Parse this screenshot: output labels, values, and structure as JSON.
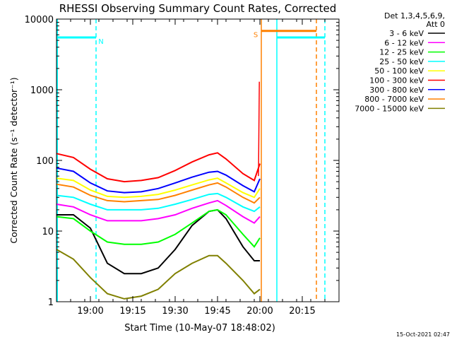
{
  "chart_data": {
    "type": "line",
    "title": "RHESSI Observing Summary Count Rates, Corrected",
    "xlabel": "Start Time (10-May-07 18:48:02)",
    "ylabel": "Corrected Count Rate (s⁻¹ detector⁻¹)",
    "yscale": "log",
    "ylim": [
      1,
      10000
    ],
    "xlim_minutes": [
      0,
      100
    ],
    "x_ticks": [
      {
        "label": "19:00",
        "minute": 12
      },
      {
        "label": "19:15",
        "minute": 27
      },
      {
        "label": "19:30",
        "minute": 42
      },
      {
        "label": "19:45",
        "minute": 57
      },
      {
        "label": "20:00",
        "minute": 72
      },
      {
        "label": "20:15",
        "minute": 87
      }
    ],
    "y_ticks": [
      "1",
      "10",
      "100",
      "1000",
      "10000"
    ],
    "legend_header": [
      "Det 1,3,4,5,6,9,",
      "Att 0"
    ],
    "legend_placement": "right",
    "timestamp": "15-Oct-2021 02:47",
    "series": [
      {
        "name": "3 - 6 keV",
        "color": "#000000",
        "x": [
          0,
          6,
          12,
          18,
          24,
          30,
          36,
          42,
          48,
          54,
          57,
          60,
          66,
          70,
          72
        ],
        "y": [
          17,
          17,
          11,
          3.5,
          2.5,
          2.5,
          3,
          5.5,
          12,
          19,
          20,
          15,
          6,
          3.8,
          3.8
        ]
      },
      {
        "name": "6 - 12 keV",
        "color": "#ff00ff",
        "x": [
          0,
          6,
          12,
          18,
          24,
          30,
          36,
          42,
          48,
          54,
          57,
          60,
          66,
          70,
          72
        ],
        "y": [
          24,
          22,
          17,
          14,
          14,
          14,
          15,
          17,
          21,
          25,
          27,
          23,
          16,
          13,
          16
        ]
      },
      {
        "name": "12 - 25 keV",
        "color": "#00ff00",
        "x": [
          0,
          6,
          12,
          18,
          24,
          30,
          36,
          42,
          48,
          54,
          57,
          60,
          66,
          70,
          72
        ],
        "y": [
          16,
          15,
          10,
          7,
          6.5,
          6.5,
          7,
          9,
          13,
          19,
          20,
          17,
          9,
          6,
          8
        ]
      },
      {
        "name": "25 - 50 keV",
        "color": "#00ffff",
        "x": [
          0,
          6,
          12,
          18,
          24,
          30,
          36,
          42,
          48,
          54,
          57,
          60,
          66,
          70,
          72
        ],
        "y": [
          32,
          30,
          24,
          20,
          20,
          20,
          21,
          24,
          28,
          33,
          34,
          30,
          22,
          19,
          22
        ]
      },
      {
        "name": "50 - 100 keV",
        "color": "#ffff00",
        "x": [
          0,
          6,
          12,
          18,
          24,
          30,
          36,
          42,
          48,
          54,
          57,
          60,
          66,
          70,
          72
        ],
        "y": [
          56,
          52,
          38,
          31,
          30,
          31,
          33,
          38,
          45,
          53,
          56,
          48,
          35,
          30,
          40
        ]
      },
      {
        "name": "100 - 300 keV",
        "color": "#ff0000",
        "x": [
          0,
          6,
          12,
          18,
          24,
          30,
          36,
          42,
          48,
          54,
          57,
          60,
          66,
          70,
          72
        ],
        "y": [
          125,
          110,
          75,
          55,
          50,
          52,
          57,
          72,
          95,
          120,
          128,
          105,
          65,
          52,
          90
        ]
      },
      {
        "name": "300 - 800 keV",
        "color": "#0000ff",
        "x": [
          0,
          6,
          12,
          18,
          24,
          30,
          36,
          42,
          48,
          54,
          57,
          60,
          66,
          70,
          72
        ],
        "y": [
          78,
          70,
          48,
          37,
          35,
          36,
          40,
          48,
          58,
          68,
          70,
          62,
          44,
          36,
          55
        ]
      },
      {
        "name": "800 - 7000 keV",
        "color": "#ff8000",
        "x": [
          0,
          6,
          12,
          18,
          24,
          30,
          36,
          42,
          48,
          54,
          57,
          60,
          66,
          70,
          72
        ],
        "y": [
          46,
          42,
          32,
          27,
          26,
          27,
          28,
          32,
          38,
          45,
          48,
          42,
          30,
          25,
          30
        ]
      },
      {
        "name": "7000 - 15000 keV",
        "color": "#808000",
        "x": [
          0,
          6,
          12,
          18,
          24,
          30,
          36,
          42,
          48,
          54,
          57,
          60,
          66,
          70,
          72
        ],
        "y": [
          5.5,
          4,
          2.2,
          1.3,
          1.1,
          1.2,
          1.5,
          2.5,
          3.5,
          4.5,
          4.5,
          3.5,
          2,
          1.3,
          1.5
        ]
      }
    ],
    "annotations": [
      {
        "label": "N",
        "color": "#00ffff",
        "x_start": 0,
        "x_end": 14,
        "y": 5500
      },
      {
        "label": "S",
        "color": "#ff8000",
        "x_start": 72.5,
        "x_end": 92,
        "y": 6800
      },
      {
        "label": "",
        "color": "#00ffff",
        "x_start": 78,
        "x_end": 95,
        "y": 5500
      }
    ],
    "vertical_lines": [
      {
        "x": 14,
        "color": "#00ffff",
        "style": "dashed"
      },
      {
        "x": 72.5,
        "color": "#ff8000",
        "style": "solid"
      },
      {
        "x": 78,
        "color": "#00ffff",
        "style": "solid"
      },
      {
        "x": 92,
        "color": "#ff8000",
        "style": "dashed"
      },
      {
        "x": 95,
        "color": "#00ffff",
        "style": "dashed"
      }
    ]
  }
}
